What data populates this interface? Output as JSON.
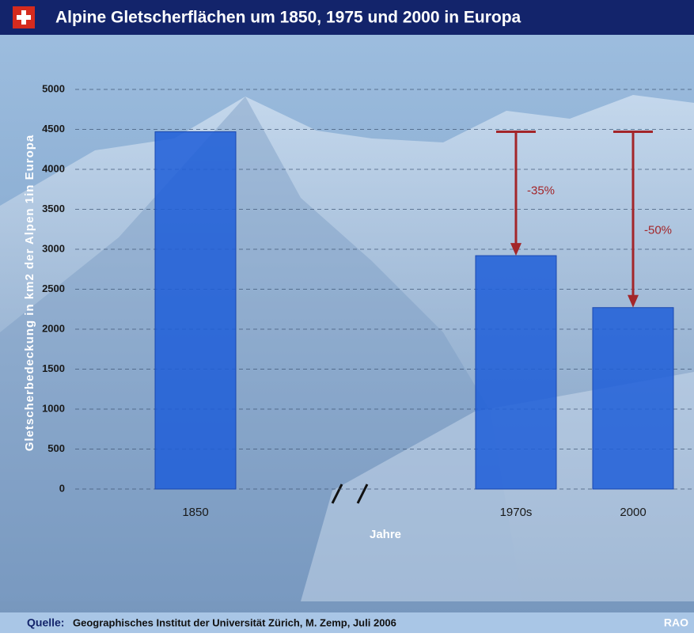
{
  "chart_data": {
    "type": "bar",
    "title": "Alpine Gletscherflächen um 1850, 1975 und 2000 in Europa",
    "y_label": "Gletscherbedeckung in km2 der Alpen 1in Europa",
    "x_label": "Jahre",
    "categories": [
      "1850",
      "1970s",
      "2000"
    ],
    "values": [
      4470,
      2920,
      2270
    ],
    "color": "#1f5ed8",
    "ylim": [
      0,
      5000
    ],
    "yticks": [
      0,
      500,
      1000,
      1500,
      2000,
      2500,
      3000,
      3500,
      4000,
      4500,
      5000
    ],
    "grid": true,
    "annotations": [
      {
        "text": "-35%",
        "color": "#a3262a"
      },
      {
        "text": "-50%",
        "color": "#a3262a"
      }
    ]
  },
  "source": {
    "label": "Quelle:",
    "text": "Geographisches Institut der Universität Zürich, M. Zemp, Juli 2006"
  },
  "logo": "RAO"
}
